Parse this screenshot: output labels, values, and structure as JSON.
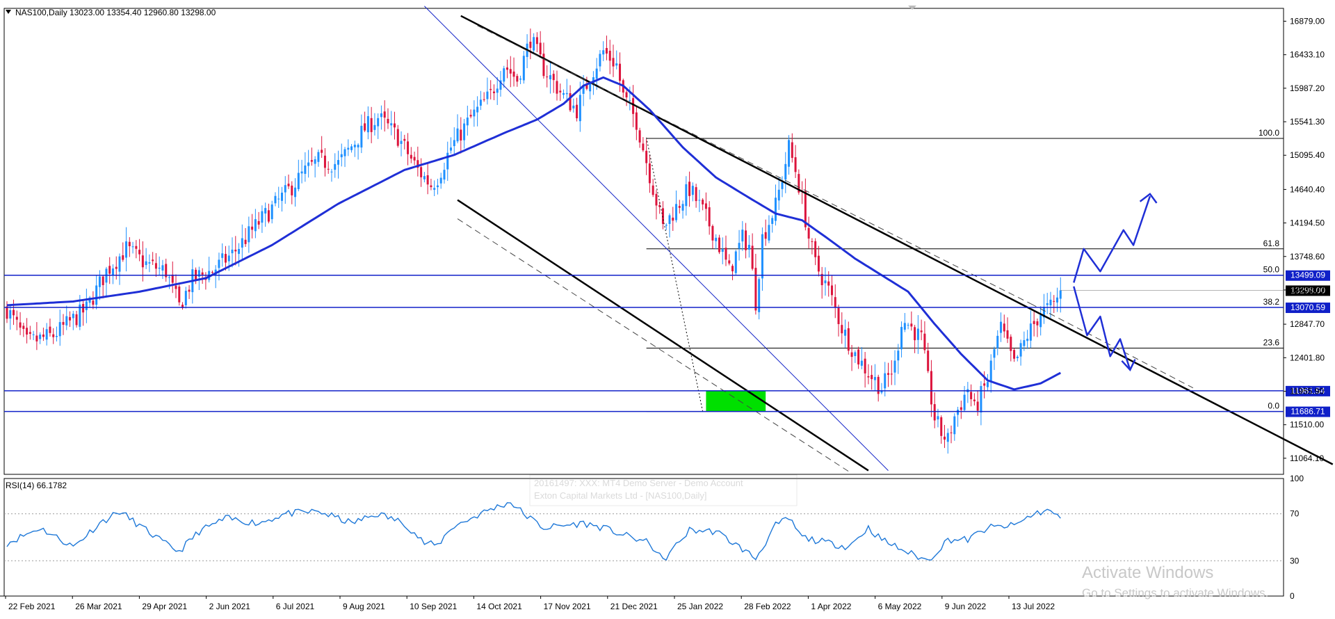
{
  "header": {
    "symbol_line": "NAS100,Daily  13023.00 13354.40 12960.80 13298.00"
  },
  "rsi_header": "RSI(14) 66.1782",
  "watermark": {
    "line1": "20161497: XXX: MT4 Demo Server - Demo Account",
    "line2": "Exton Capital Markets Ltd - [NAS100,Daily]"
  },
  "activate": {
    "title": "Activate Windows",
    "subtitle": "Go to Settings to activate Windows."
  },
  "colors": {
    "bull": "#1e90ff",
    "bear": "#dc143c",
    "ma": "#1f2fd6",
    "level": "#1020c8",
    "rsi": "#1e78d8",
    "highlight": "#00e000"
  },
  "chart_data": [
    {
      "type": "candlestick",
      "symbol": "NAS100",
      "timeframe": "Daily",
      "ylim": [
        10850,
        17050
      ],
      "price_ticks": [
        "16879.00",
        "16433.10",
        "15987.20",
        "15541.30",
        "15095.40",
        "14640.40",
        "14194.50",
        "13748.60",
        "13302.70",
        "12847.70",
        "12401.80",
        "11955.90",
        "11510.00",
        "11064.10"
      ],
      "date_ticks": [
        "22 Feb 2021",
        "26 Mar 2021",
        "29 Apr 2021",
        "2 Jun 2021",
        "6 Jul 2021",
        "9 Aug 2021",
        "10 Sep 2021",
        "14 Oct 2021",
        "17 Nov 2021",
        "21 Dec 2021",
        "25 Jan 2022",
        "28 Feb 2022",
        "1 Apr 2022",
        "6 May 2022",
        "9 Jun 2022",
        "13 Jul 2022"
      ],
      "price_path": [
        [
          0,
          13050
        ],
        [
          6,
          12600
        ],
        [
          14,
          12700
        ],
        [
          24,
          13050
        ],
        [
          30,
          13550
        ],
        [
          36,
          13850
        ],
        [
          42,
          13650
        ],
        [
          48,
          13550
        ],
        [
          52,
          13080
        ],
        [
          56,
          13450
        ],
        [
          62,
          13560
        ],
        [
          68,
          13780
        ],
        [
          76,
          14200
        ],
        [
          84,
          14580
        ],
        [
          90,
          14880
        ],
        [
          94,
          15020
        ],
        [
          100,
          14980
        ],
        [
          108,
          15450
        ],
        [
          112,
          15600
        ],
        [
          118,
          15340
        ],
        [
          124,
          14900
        ],
        [
          128,
          14700
        ],
        [
          130,
          14800
        ],
        [
          134,
          15200
        ],
        [
          140,
          15590
        ],
        [
          146,
          15900
        ],
        [
          150,
          16300
        ],
        [
          154,
          16100
        ],
        [
          158,
          16650
        ],
        [
          162,
          16250
        ],
        [
          168,
          15880
        ],
        [
          172,
          15700
        ],
        [
          176,
          16150
        ],
        [
          180,
          16480
        ],
        [
          184,
          16300
        ],
        [
          186,
          15880
        ],
        [
          190,
          15550
        ],
        [
          194,
          14840
        ],
        [
          198,
          14130
        ],
        [
          202,
          14400
        ],
        [
          206,
          14650
        ],
        [
          210,
          14350
        ],
        [
          214,
          14000
        ],
        [
          218,
          13550
        ],
        [
          222,
          13990
        ],
        [
          224,
          13900
        ],
        [
          226,
          13150
        ],
        [
          228,
          14000
        ],
        [
          232,
          14420
        ],
        [
          234,
          14800
        ],
        [
          236,
          15200
        ],
        [
          238,
          14900
        ],
        [
          240,
          14500
        ],
        [
          242,
          14000
        ],
        [
          244,
          13650
        ],
        [
          248,
          13300
        ],
        [
          252,
          12800
        ],
        [
          256,
          12450
        ],
        [
          260,
          12200
        ],
        [
          264,
          12000
        ],
        [
          268,
          12300
        ],
        [
          270,
          12900
        ],
        [
          272,
          12850
        ],
        [
          276,
          12650
        ],
        [
          278,
          12100
        ],
        [
          280,
          11600
        ],
        [
          282,
          11400
        ],
        [
          284,
          11300
        ],
        [
          286,
          11620
        ],
        [
          288,
          11800
        ],
        [
          290,
          12000
        ],
        [
          292,
          11700
        ],
        [
          294,
          11900
        ],
        [
          296,
          12100
        ],
        [
          298,
          12500
        ],
        [
          300,
          12800
        ],
        [
          302,
          12550
        ],
        [
          304,
          12300
        ],
        [
          308,
          12700
        ],
        [
          312,
          13000
        ],
        [
          316,
          13100
        ],
        [
          318,
          13298
        ]
      ],
      "ma_path": [
        [
          0,
          13100
        ],
        [
          20,
          13150
        ],
        [
          40,
          13280
        ],
        [
          60,
          13460
        ],
        [
          80,
          13900
        ],
        [
          100,
          14450
        ],
        [
          120,
          14900
        ],
        [
          135,
          15100
        ],
        [
          150,
          15390
        ],
        [
          160,
          15570
        ],
        [
          168,
          15780
        ],
        [
          174,
          16020
        ],
        [
          180,
          16130
        ],
        [
          186,
          16020
        ],
        [
          194,
          15700
        ],
        [
          204,
          15200
        ],
        [
          214,
          14800
        ],
        [
          224,
          14530
        ],
        [
          232,
          14320
        ],
        [
          240,
          14230
        ],
        [
          248,
          13980
        ],
        [
          256,
          13720
        ],
        [
          264,
          13500
        ],
        [
          272,
          13280
        ],
        [
          280,
          12850
        ],
        [
          288,
          12450
        ],
        [
          296,
          12100
        ],
        [
          304,
          11980
        ],
        [
          312,
          12060
        ],
        [
          318,
          12200
        ]
      ],
      "rsi_ylim": [
        0,
        100
      ],
      "rsi_levels": [
        30,
        70
      ],
      "rsi_ticks": [
        "100",
        "70",
        "30",
        "0"
      ],
      "rsi_path": [
        [
          0,
          45
        ],
        [
          10,
          58
        ],
        [
          20,
          42
        ],
        [
          28,
          62
        ],
        [
          34,
          72
        ],
        [
          40,
          60
        ],
        [
          48,
          44
        ],
        [
          52,
          38
        ],
        [
          58,
          55
        ],
        [
          66,
          66
        ],
        [
          76,
          62
        ],
        [
          84,
          70
        ],
        [
          94,
          72
        ],
        [
          104,
          62
        ],
        [
          112,
          70
        ],
        [
          120,
          62
        ],
        [
          126,
          45
        ],
        [
          130,
          43
        ],
        [
          134,
          58
        ],
        [
          146,
          74
        ],
        [
          152,
          80
        ],
        [
          156,
          70
        ],
        [
          162,
          58
        ],
        [
          168,
          60
        ],
        [
          174,
          62
        ],
        [
          180,
          58
        ],
        [
          186,
          52
        ],
        [
          194,
          45
        ],
        [
          198,
          30
        ],
        [
          206,
          56
        ],
        [
          214,
          55
        ],
        [
          222,
          40
        ],
        [
          226,
          32
        ],
        [
          232,
          60
        ],
        [
          236,
          66
        ],
        [
          240,
          50
        ],
        [
          248,
          45
        ],
        [
          254,
          42
        ],
        [
          260,
          58
        ],
        [
          264,
          48
        ],
        [
          272,
          37
        ],
        [
          278,
          30
        ],
        [
          284,
          48
        ],
        [
          290,
          48
        ],
        [
          296,
          58
        ],
        [
          304,
          60
        ],
        [
          310,
          70
        ],
        [
          314,
          73
        ],
        [
          318,
          66.18
        ]
      ],
      "horizontal_levels": [
        {
          "price": 13499.09,
          "label": "13499.09"
        },
        {
          "price": 13070.59,
          "label": "13070.59"
        },
        {
          "price": 11961.54,
          "label": "11961.54"
        },
        {
          "price": 11686.71,
          "label": "11686.71"
        }
      ],
      "current_price": {
        "price": 13298.0,
        "label": "13298.00"
      },
      "fibonacci": [
        {
          "level": "100.0",
          "price": 15320
        },
        {
          "level": "61.8",
          "price": 13850
        },
        {
          "level": "50.0",
          "price": 13499.09
        },
        {
          "level": "38.2",
          "price": 13070.59
        },
        {
          "level": "23.6",
          "price": 12530
        },
        {
          "level": "0.0",
          "price": 11686.71
        }
      ]
    }
  ]
}
